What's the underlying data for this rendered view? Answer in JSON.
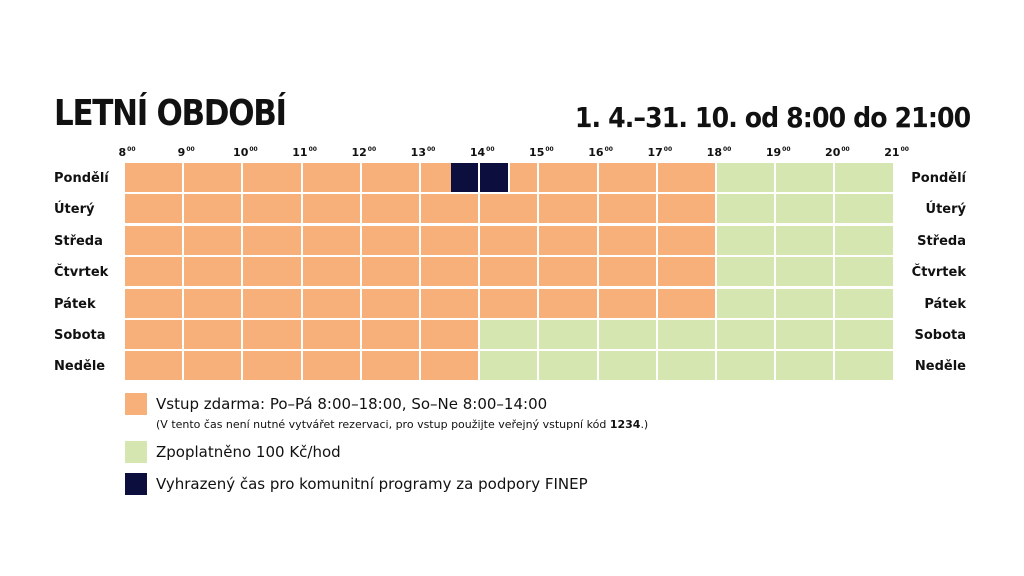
{
  "title": "LETNÍ OBDOBÍ",
  "date_range": "1. 4.–31. 10. od 8:00 do 21:00",
  "hours": [
    {
      "h": "8",
      "sup": "00"
    },
    {
      "h": "9",
      "sup": "00"
    },
    {
      "h": "10",
      "sup": "00"
    },
    {
      "h": "11",
      "sup": "00"
    },
    {
      "h": "12",
      "sup": "00"
    },
    {
      "h": "13",
      "sup": "00"
    },
    {
      "h": "14",
      "sup": "00"
    },
    {
      "h": "15",
      "sup": "00"
    },
    {
      "h": "16",
      "sup": "00"
    },
    {
      "h": "17",
      "sup": "00"
    },
    {
      "h": "18",
      "sup": "00"
    },
    {
      "h": "19",
      "sup": "00"
    },
    {
      "h": "20",
      "sup": "00"
    },
    {
      "h": "21",
      "sup": "00"
    }
  ],
  "days": [
    "Pondělí",
    "Úterý",
    "Středa",
    "Čtvrtek",
    "Pátek",
    "Sobota",
    "Neděle"
  ],
  "schedule": [
    {
      "free": [
        8,
        18
      ],
      "paid": [
        18,
        21
      ],
      "reserved": [
        [
          13.5,
          14.5
        ]
      ]
    },
    {
      "free": [
        8,
        18
      ],
      "paid": [
        18,
        21
      ],
      "reserved": []
    },
    {
      "free": [
        8,
        18
      ],
      "paid": [
        18,
        21
      ],
      "reserved": []
    },
    {
      "free": [
        8,
        18
      ],
      "paid": [
        18,
        21
      ],
      "reserved": []
    },
    {
      "free": [
        8,
        18
      ],
      "paid": [
        18,
        21
      ],
      "reserved": []
    },
    {
      "free": [
        8,
        14
      ],
      "paid": [
        14,
        21
      ],
      "reserved": []
    },
    {
      "free": [
        8,
        14
      ],
      "paid": [
        14,
        21
      ],
      "reserved": []
    }
  ],
  "colors": {
    "free": "#f7b07a",
    "paid": "#d5e6b0",
    "reserved": "#0c0e3d"
  },
  "legend": {
    "free": "Vstup zdarma: Po–Pá 8:00–18:00, So–Ne 8:00–14:00",
    "free_note_prefix": "(V tento čas není nutné vytvářet rezervaci, pro vstup použijte veřejný vstupní kód ",
    "free_note_code": "1234",
    "free_note_suffix": ".)",
    "paid": "Zpoplatněno 100 Kč/hod",
    "reserved": "Vyhrazený čas pro komunitní programy za podpory FINEP"
  }
}
